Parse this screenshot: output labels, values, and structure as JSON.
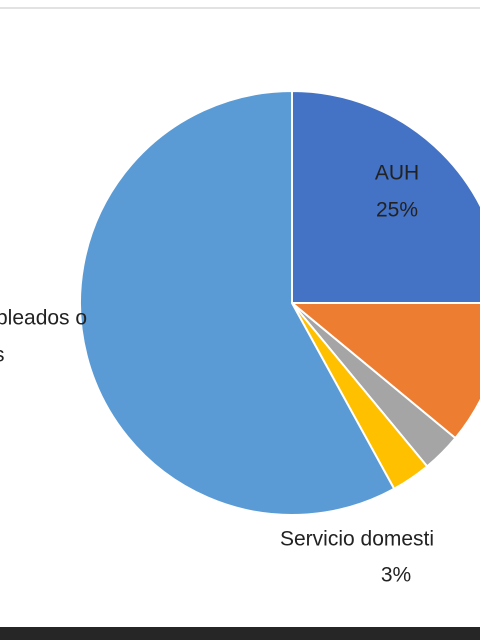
{
  "chart_data": {
    "type": "pie",
    "values": [
      25,
      11,
      3,
      3,
      58
    ],
    "colors": [
      "#4472c4",
      "#ed7d31",
      "#a5a5a5",
      "#ffc000",
      "#5b9bd5"
    ],
    "labels": [
      [
        "AUH",
        "25%"
      ],
      null,
      null,
      [
        "Servicio domesti",
        "3%"
      ],
      [
        "pleados o",
        "s"
      ]
    ]
  }
}
